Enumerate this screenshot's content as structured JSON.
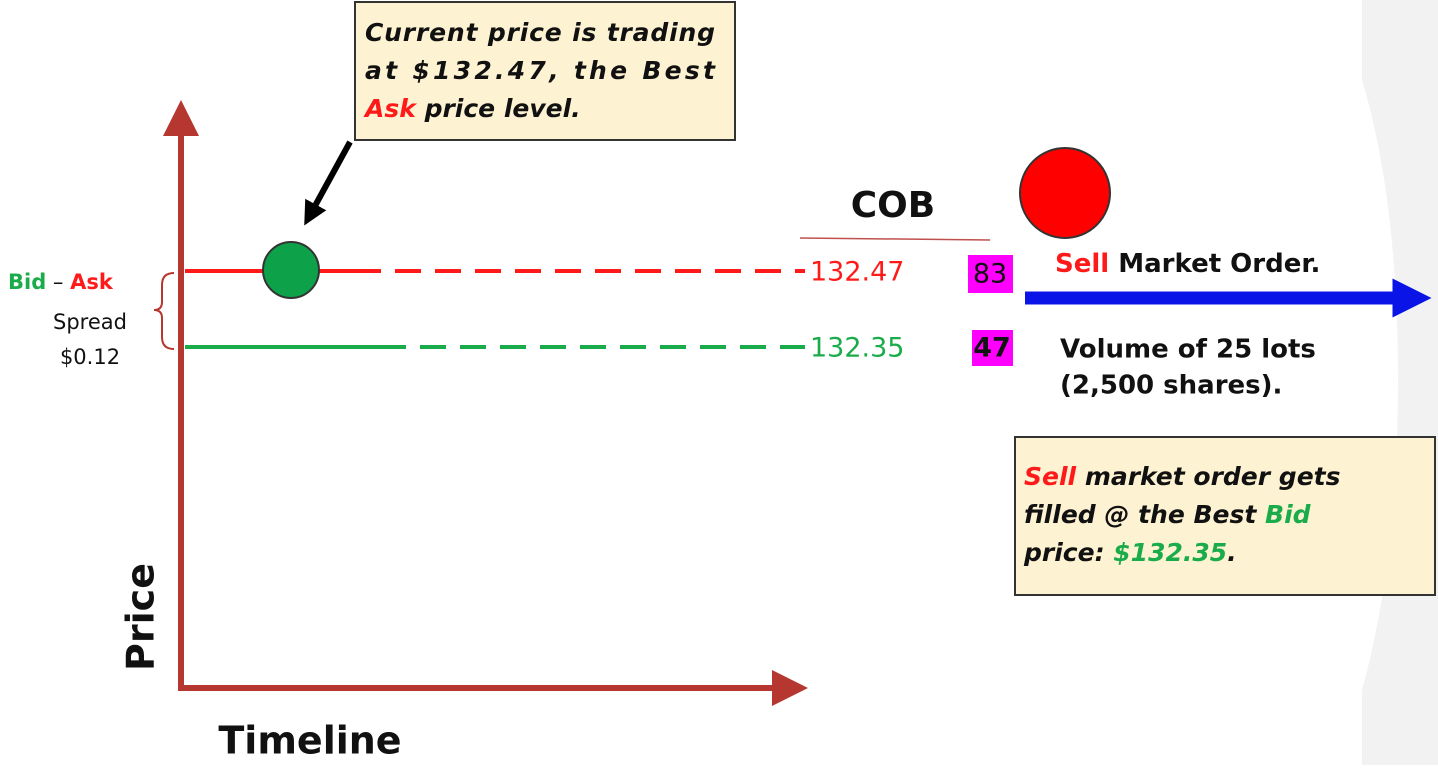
{
  "callout_top": {
    "line1": "Current price is trading",
    "line2": "at $132.47, the Best",
    "line3_ask": "Ask",
    "line3_rest": " price level."
  },
  "cob": {
    "title": "COB",
    "ask_price": "132.47",
    "ask_size": "83",
    "bid_price": "132.35",
    "bid_size": "47"
  },
  "order": {
    "sell": "Sell",
    "label": " Market Order.",
    "volume_line1": "Volume of 25 lots",
    "volume_line2": "(2,500 shares)."
  },
  "callout_bottom": {
    "sell": "Sell",
    "line1_rest": " market order gets",
    "line2": "filled @ the Best ",
    "bid": "Bid",
    "line3": "price: ",
    "price": "$132.35",
    "end": "."
  },
  "spread": {
    "bid": "Bid",
    "dash": " – ",
    "ask": "Ask",
    "label": "Spread",
    "value": "$0.12"
  },
  "axes": {
    "y_label": "Price",
    "x_label": "Timeline"
  }
}
